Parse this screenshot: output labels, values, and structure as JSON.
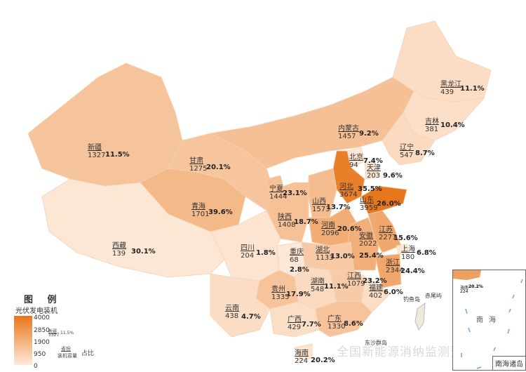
{
  "legend": {
    "title": "图  例",
    "subtitle": "光伏发电装机",
    "ticks": [
      "4000",
      "2850",
      "1900",
      "950",
      "0"
    ],
    "example": {
      "name": "新疆",
      "value": "1327",
      "pct": "11.5%",
      "province_label": "省份",
      "capacity_label": "装机容量",
      "ratio_label": "占比"
    },
    "color_low": "#fdeadb",
    "color_high": "#e8761a"
  },
  "provinces": [
    {
      "name": "新疆",
      "value": 1327,
      "pct": "11.5%"
    },
    {
      "name": "西藏",
      "value": 139,
      "pct": "30.1%"
    },
    {
      "name": "青海",
      "value": 1701,
      "pct": "39.6%"
    },
    {
      "name": "甘肃",
      "value": 1275,
      "pct": "20.1%"
    },
    {
      "name": "内蒙古",
      "value": 1457,
      "pct": "9.2%"
    },
    {
      "name": "黑龙江",
      "value": 439,
      "pct": "11.1%"
    },
    {
      "name": "吉林",
      "value": 381,
      "pct": "10.4%"
    },
    {
      "name": "辽宁",
      "value": 547,
      "pct": "8.7%"
    },
    {
      "name": "北京",
      "value": 94,
      "pct": "7.4%"
    },
    {
      "name": "天津",
      "value": 203,
      "pct": "9.6%"
    },
    {
      "name": "河北",
      "value": 3674,
      "pct": "35.5%"
    },
    {
      "name": "山东",
      "value": 3959,
      "pct": "26.0%"
    },
    {
      "name": "山西",
      "value": 1573,
      "pct": "13.7%"
    },
    {
      "name": "宁夏",
      "value": 1444,
      "pct": "23.1%"
    },
    {
      "name": "陕西",
      "value": 1408,
      "pct": "18.7%"
    },
    {
      "name": "河南",
      "value": 2096,
      "pct": "20.6%"
    },
    {
      "name": "安徽",
      "value": 2022,
      "pct": "25.4%"
    },
    {
      "name": "江苏",
      "value": 2277,
      "pct": "15.6%"
    },
    {
      "name": "上海",
      "value": 180,
      "pct": "6.8%"
    },
    {
      "name": "浙江",
      "value": 2344,
      "pct": "24.4%"
    },
    {
      "name": "湖北",
      "value": 1133,
      "pct": "13.0%"
    },
    {
      "name": "重庆",
      "value": 68,
      "pct": "2.8%"
    },
    {
      "name": "四川",
      "value": 204,
      "pct": "1.8%"
    },
    {
      "name": "湖南",
      "value": 548,
      "pct": "11.1%"
    },
    {
      "name": "江西",
      "value": 1079,
      "pct": "23.2%"
    },
    {
      "name": "福建",
      "value": 402,
      "pct": "6.0%"
    },
    {
      "name": "贵州",
      "value": 1335,
      "pct": "17.9%"
    },
    {
      "name": "云南",
      "value": 438,
      "pct": "4.7%"
    },
    {
      "name": "广西",
      "value": 429,
      "pct": "7.7%"
    },
    {
      "name": "广东",
      "value": 1330,
      "pct": "8.6%"
    },
    {
      "name": "海南",
      "value": 224,
      "pct": "20.2%"
    }
  ],
  "islands": [
    "钓鱼岛",
    "赤尾屿",
    "东沙群岛"
  ],
  "inset": {
    "title": "南海诸岛",
    "sea": "南海",
    "hainan_name": "海南",
    "hainan_value": "224",
    "hainan_pct": "20.2%"
  },
  "watermark": "全国新能源消纳监测预警中心"
}
